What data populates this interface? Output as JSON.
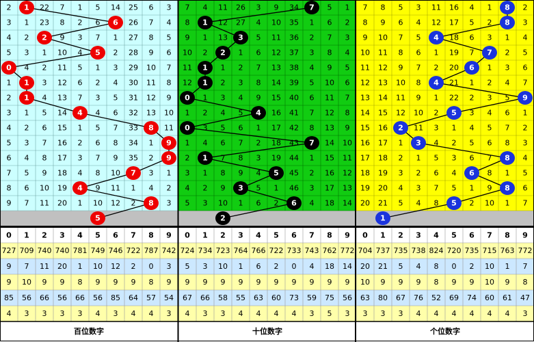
{
  "digits": [
    "0",
    "1",
    "2",
    "3",
    "4",
    "5",
    "6",
    "7",
    "8",
    "9"
  ],
  "panels": [
    {
      "label": "百位数字",
      "draws": [
        1,
        6,
        2,
        5,
        0,
        1,
        1,
        4,
        8,
        9,
        9,
        7,
        4,
        8
      ],
      "prediction": 5,
      "rows": [
        [
          2,
          null,
          22,
          7,
          1,
          5,
          14,
          25,
          6,
          3
        ],
        [
          3,
          1,
          23,
          8,
          2,
          6,
          null,
          26,
          7,
          4
        ],
        [
          4,
          2,
          null,
          9,
          3,
          7,
          1,
          27,
          8,
          5
        ],
        [
          5,
          3,
          1,
          10,
          4,
          null,
          2,
          28,
          9,
          6
        ],
        [
          null,
          4,
          2,
          11,
          5,
          1,
          3,
          29,
          10,
          7
        ],
        [
          1,
          null,
          3,
          12,
          6,
          2,
          4,
          30,
          11,
          8
        ],
        [
          2,
          null,
          4,
          13,
          7,
          3,
          5,
          31,
          12,
          9
        ],
        [
          3,
          1,
          5,
          14,
          null,
          4,
          6,
          32,
          13,
          10
        ],
        [
          4,
          2,
          6,
          15,
          1,
          5,
          7,
          33,
          null,
          11
        ],
        [
          5,
          3,
          7,
          16,
          2,
          6,
          8,
          34,
          1,
          null
        ],
        [
          6,
          4,
          8,
          17,
          3,
          7,
          9,
          35,
          2,
          null
        ],
        [
          7,
          5,
          9,
          18,
          4,
          8,
          10,
          null,
          3,
          1
        ],
        [
          8,
          6,
          10,
          19,
          null,
          9,
          11,
          1,
          4,
          2
        ],
        [
          9,
          7,
          11,
          20,
          1,
          10,
          12,
          2,
          null,
          3
        ]
      ],
      "stats": [
        [
          727,
          709,
          740,
          740,
          781,
          749,
          746,
          722,
          787,
          742
        ],
        [
          9,
          7,
          11,
          20,
          1,
          10,
          12,
          2,
          0,
          3
        ],
        [
          9,
          10,
          9,
          9,
          8,
          9,
          9,
          9,
          8,
          9
        ],
        [
          85,
          56,
          66,
          56,
          66,
          56,
          85,
          64,
          57,
          54
        ],
        [
          4,
          3,
          3,
          3,
          3,
          4,
          3,
          4,
          4,
          3
        ]
      ]
    },
    {
      "label": "十位数字",
      "draws": [
        7,
        1,
        3,
        2,
        1,
        1,
        0,
        4,
        0,
        7,
        1,
        5,
        3,
        6
      ],
      "prediction": 2,
      "rows": [
        [
          7,
          4,
          11,
          26,
          3,
          9,
          34,
          null,
          5,
          1
        ],
        [
          8,
          null,
          12,
          27,
          4,
          10,
          35,
          1,
          6,
          2
        ],
        [
          9,
          1,
          13,
          null,
          5,
          11,
          36,
          2,
          7,
          3
        ],
        [
          10,
          2,
          null,
          1,
          6,
          12,
          37,
          3,
          8,
          4
        ],
        [
          11,
          null,
          1,
          2,
          7,
          13,
          38,
          4,
          9,
          5
        ],
        [
          12,
          null,
          2,
          3,
          8,
          14,
          39,
          5,
          10,
          6
        ],
        [
          null,
          1,
          3,
          4,
          9,
          15,
          40,
          6,
          11,
          7
        ],
        [
          1,
          2,
          4,
          5,
          null,
          16,
          41,
          7,
          12,
          8
        ],
        [
          null,
          3,
          5,
          6,
          1,
          17,
          42,
          8,
          13,
          9
        ],
        [
          1,
          4,
          6,
          7,
          2,
          18,
          43,
          null,
          14,
          10
        ],
        [
          2,
          null,
          7,
          8,
          3,
          19,
          44,
          1,
          15,
          11
        ],
        [
          3,
          1,
          8,
          9,
          4,
          null,
          45,
          2,
          16,
          12
        ],
        [
          4,
          2,
          9,
          null,
          5,
          1,
          46,
          3,
          17,
          13
        ],
        [
          5,
          3,
          10,
          1,
          6,
          2,
          null,
          4,
          18,
          14
        ]
      ],
      "stats": [
        [
          724,
          734,
          723,
          764,
          766,
          722,
          733,
          743,
          762,
          772
        ],
        [
          5,
          3,
          10,
          1,
          6,
          2,
          0,
          4,
          18,
          14
        ],
        [
          9,
          9,
          9,
          9,
          9,
          9,
          9,
          9,
          9,
          9
        ],
        [
          67,
          66,
          58,
          55,
          63,
          60,
          73,
          59,
          75,
          56
        ],
        [
          4,
          3,
          3,
          4,
          4,
          4,
          4,
          3,
          5,
          3
        ]
      ]
    },
    {
      "label": "个位数字",
      "draws": [
        8,
        8,
        4,
        7,
        6,
        4,
        9,
        5,
        2,
        3,
        8,
        6,
        8,
        5
      ],
      "prediction": 1,
      "rows": [
        [
          7,
          8,
          5,
          3,
          11,
          16,
          4,
          1,
          null,
          2
        ],
        [
          8,
          9,
          6,
          4,
          12,
          17,
          5,
          2,
          null,
          3
        ],
        [
          9,
          10,
          7,
          5,
          null,
          18,
          6,
          3,
          1,
          4
        ],
        [
          10,
          11,
          8,
          6,
          1,
          19,
          7,
          null,
          2,
          5
        ],
        [
          11,
          12,
          9,
          7,
          2,
          20,
          null,
          1,
          3,
          6
        ],
        [
          12,
          13,
          10,
          8,
          null,
          21,
          1,
          2,
          4,
          7
        ],
        [
          13,
          14,
          11,
          9,
          1,
          22,
          2,
          3,
          5,
          null
        ],
        [
          14,
          15,
          12,
          10,
          2,
          null,
          3,
          4,
          6,
          1
        ],
        [
          15,
          16,
          null,
          11,
          3,
          1,
          4,
          5,
          7,
          2
        ],
        [
          16,
          17,
          1,
          null,
          4,
          2,
          5,
          6,
          8,
          3
        ],
        [
          17,
          18,
          2,
          1,
          5,
          3,
          6,
          7,
          null,
          4
        ],
        [
          18,
          19,
          3,
          2,
          6,
          4,
          null,
          8,
          1,
          5
        ],
        [
          19,
          20,
          4,
          3,
          7,
          5,
          1,
          9,
          null,
          6
        ],
        [
          20,
          21,
          5,
          4,
          8,
          null,
          2,
          10,
          1,
          7
        ]
      ],
      "stats": [
        [
          704,
          737,
          735,
          738,
          824,
          720,
          735,
          715,
          763,
          772
        ],
        [
          20,
          21,
          5,
          4,
          8,
          0,
          2,
          10,
          1,
          7
        ],
        [
          10,
          9,
          9,
          9,
          8,
          9,
          9,
          10,
          9,
          8
        ],
        [
          63,
          80,
          67,
          76,
          52,
          69,
          74,
          60,
          61,
          47
        ],
        [
          3,
          3,
          3,
          4,
          4,
          4,
          4,
          4,
          4,
          3
        ]
      ]
    }
  ]
}
